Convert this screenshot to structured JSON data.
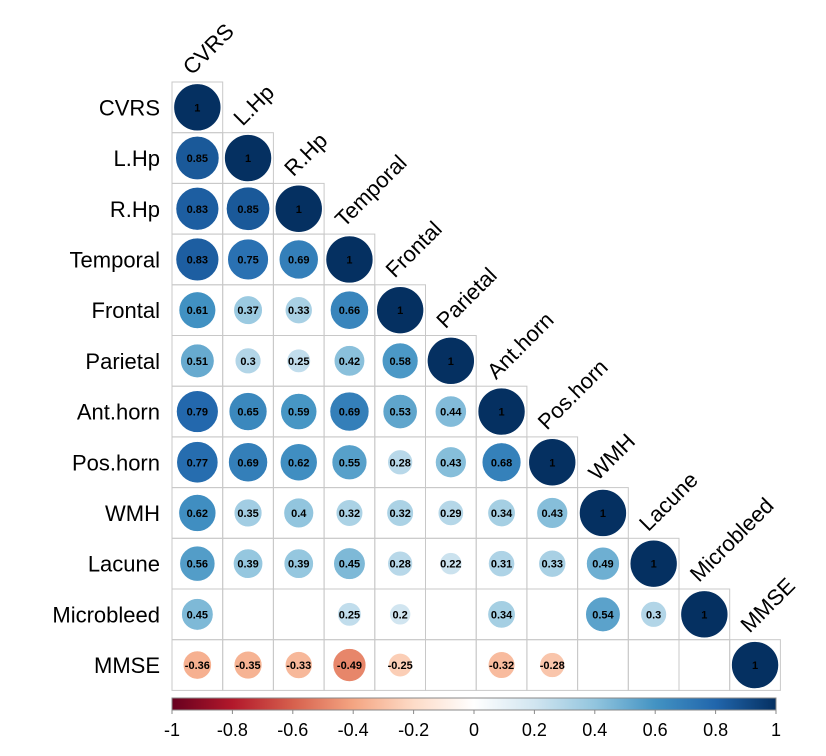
{
  "chart_data": {
    "type": "heatmap",
    "title": "",
    "variables": [
      "CVRS",
      "L.Hp",
      "R.Hp",
      "Temporal",
      "Frontal",
      "Parietal",
      "Ant.horn",
      "Pos.horn",
      "WMH",
      "Lacune",
      "Microbleed",
      "MMSE"
    ],
    "matrix": [
      [
        "1"
      ],
      [
        "0.85",
        "1"
      ],
      [
        "0.83",
        "0.85",
        "1"
      ],
      [
        "0.83",
        "0.75",
        "0.69",
        "1"
      ],
      [
        "0.61",
        "0.37",
        "0.33",
        "0.66",
        "1"
      ],
      [
        "0.51",
        "0.3",
        "0.25",
        "0.42",
        "0.58",
        "1"
      ],
      [
        "0.79",
        "0.65",
        "0.59",
        "0.69",
        "0.53",
        "0.44",
        "1"
      ],
      [
        "0.77",
        "0.69",
        "0.62",
        "0.55",
        "0.28",
        "0.43",
        "0.68",
        "1"
      ],
      [
        "0.62",
        "0.35",
        "0.4",
        "0.32",
        "0.32",
        "0.29",
        "0.34",
        "0.43",
        "1"
      ],
      [
        "0.56",
        "0.39",
        "0.39",
        "0.45",
        "0.28",
        "0.22",
        "0.31",
        "0.33",
        "0.49",
        "1"
      ],
      [
        "0.45",
        null,
        null,
        "0.25",
        "0.2",
        null,
        "0.34",
        null,
        "0.54",
        "0.3",
        "1"
      ],
      [
        "-0.36",
        "-0.35",
        "-0.33",
        "-0.49",
        "-0.25",
        null,
        "-0.32",
        "-0.28",
        null,
        null,
        null,
        "1"
      ]
    ],
    "colorbar": {
      "range": [
        -1,
        1
      ],
      "ticks": [
        "-1",
        "-0.8",
        "-0.6",
        "-0.4",
        "-0.2",
        "0",
        "0.2",
        "0.4",
        "0.6",
        "0.8",
        "1"
      ],
      "colors": [
        "#67001F",
        "#B2182B",
        "#D6604D",
        "#F4A582",
        "#FDDBC7",
        "#FFFFFF",
        "#D1E5F0",
        "#92C5DE",
        "#4393C3",
        "#2166AC",
        "#053061"
      ]
    }
  }
}
